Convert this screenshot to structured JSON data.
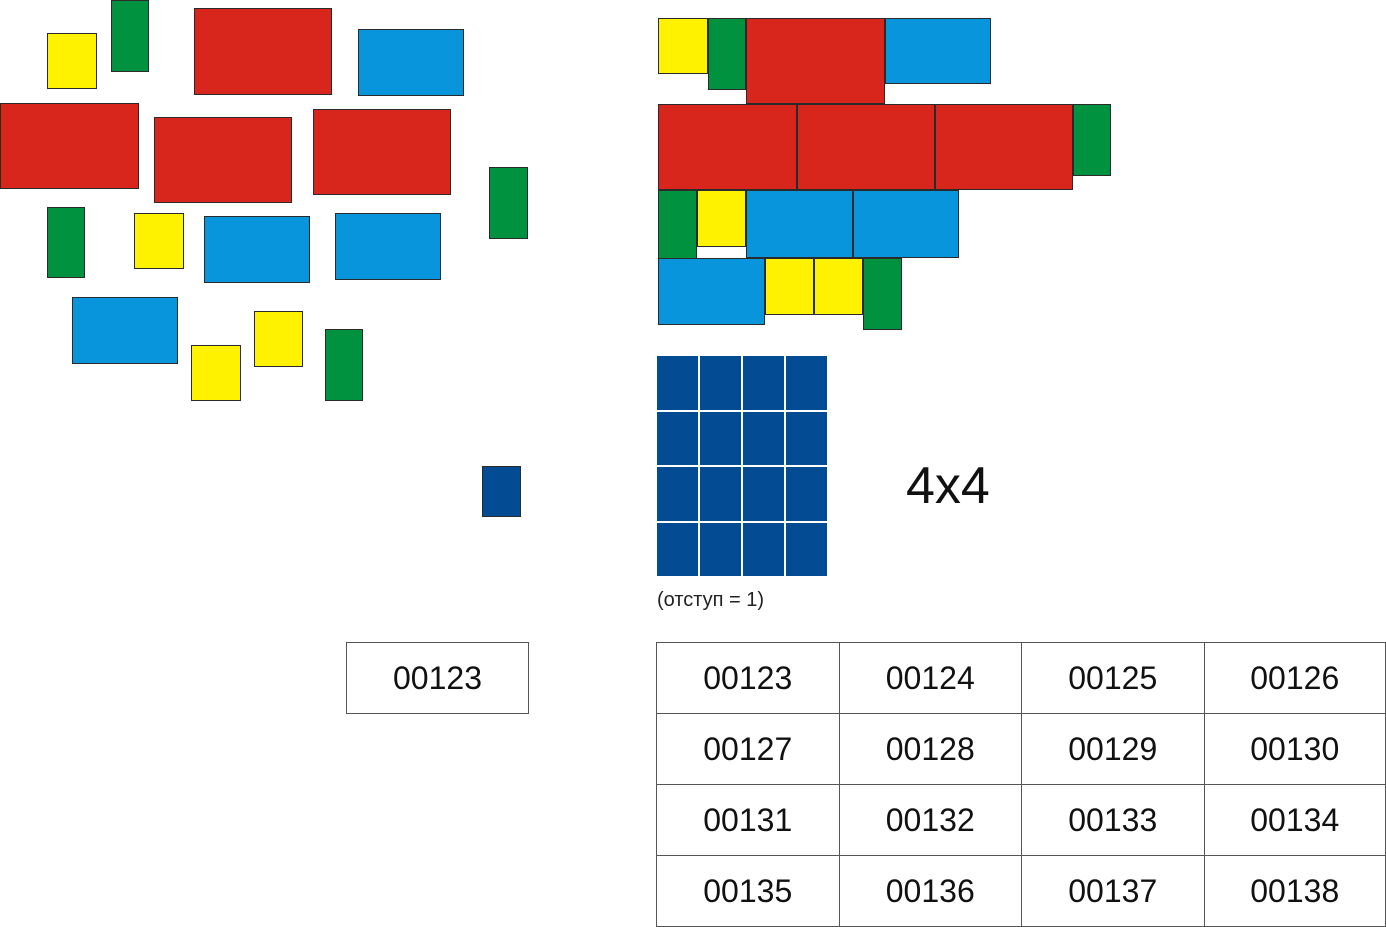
{
  "colors": {
    "red": "#d9261c",
    "blue": "#0895db",
    "yellow": "#fff200",
    "green": "#00923f",
    "navy": "#034b93"
  },
  "grid": {
    "size_label": "4x4",
    "spacing_label": "(отступ = 1)"
  },
  "single_number": "00123",
  "number_table": [
    [
      "00123",
      "00124",
      "00125",
      "00126"
    ],
    [
      "00127",
      "00128",
      "00129",
      "00130"
    ],
    [
      "00131",
      "00132",
      "00133",
      "00134"
    ],
    [
      "00135",
      "00136",
      "00137",
      "00138"
    ]
  ]
}
